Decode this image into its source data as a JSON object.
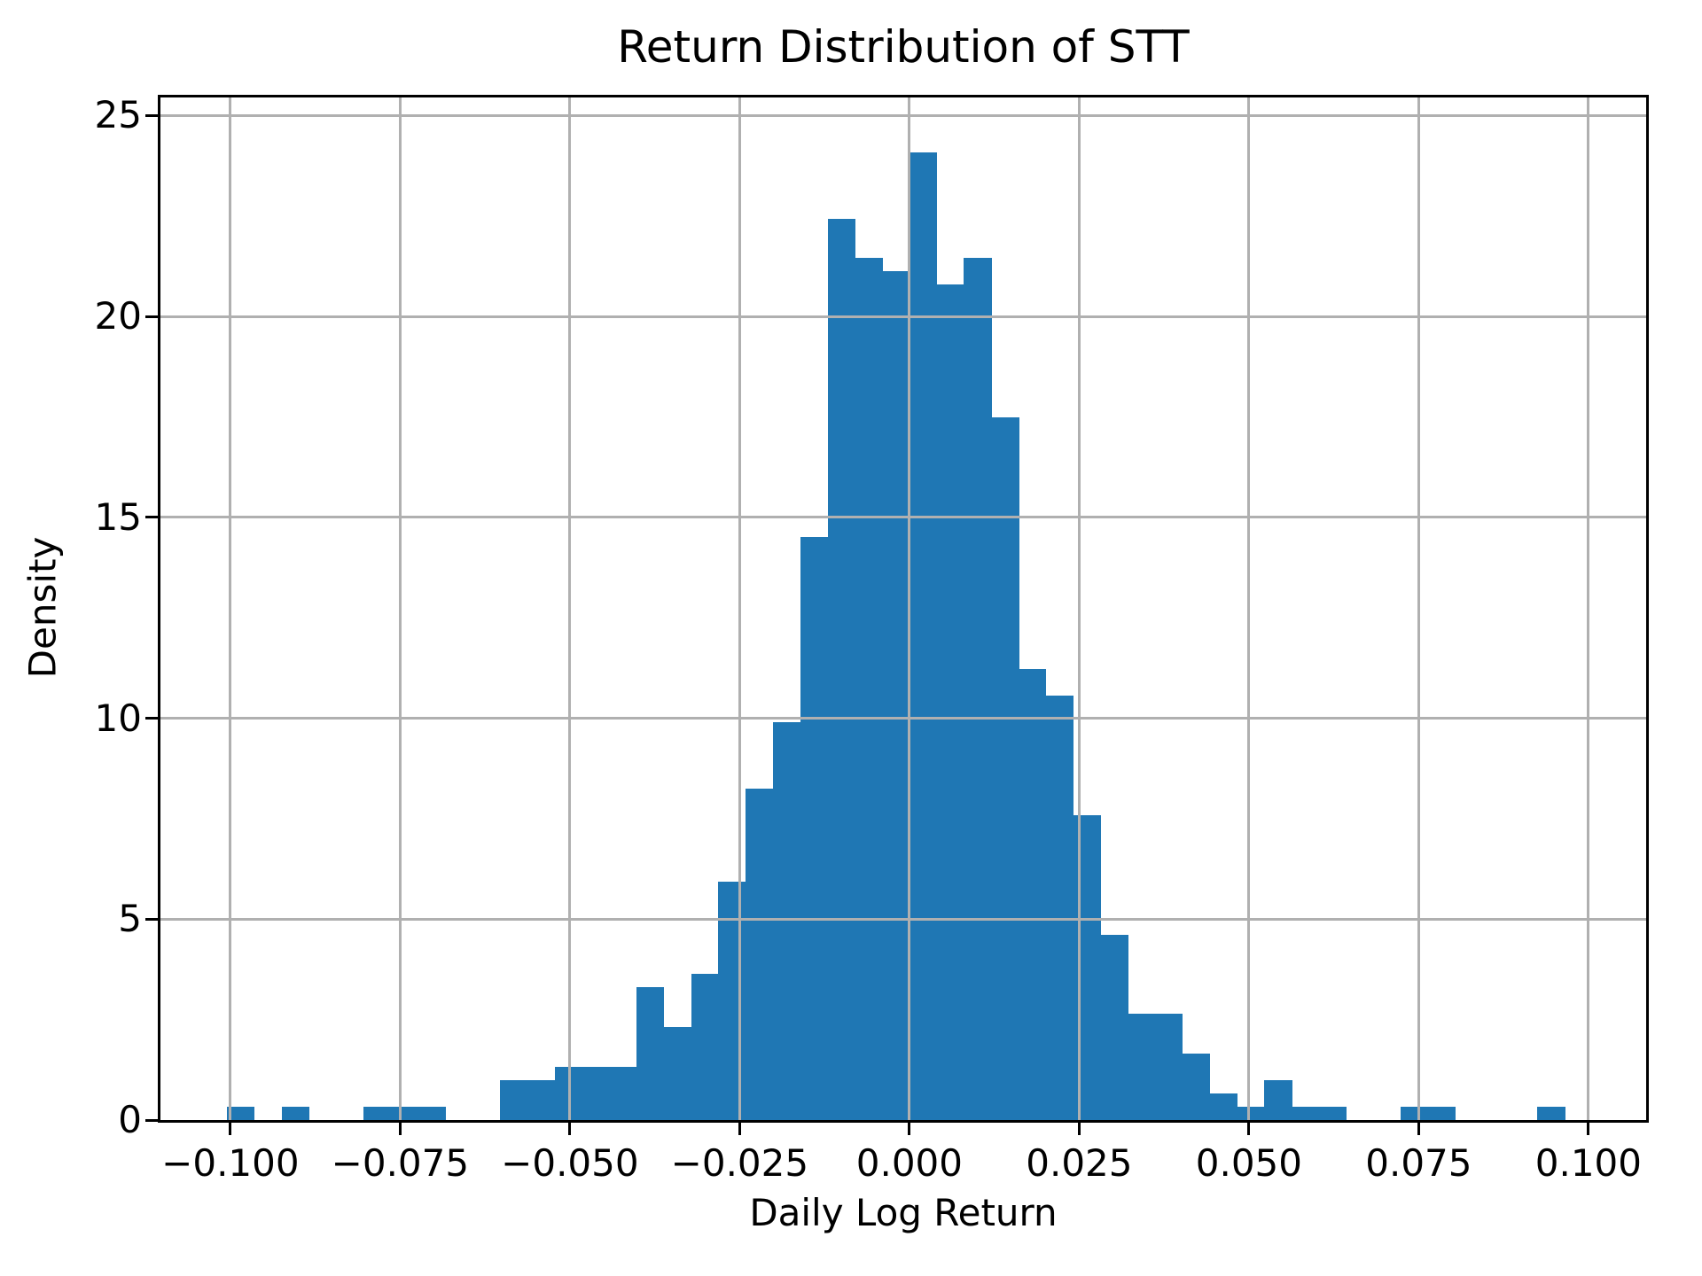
{
  "chart_data": {
    "type": "bar",
    "subtype": "histogram",
    "title": "Return Distribution of STT",
    "xlabel": "Daily Log Return",
    "ylabel": "Density",
    "bar_color": "#1f77b4",
    "grid_color": "#b0b0b0",
    "grid_on": true,
    "grid_above_bars": true,
    "legend": "none",
    "xlim": [
      -0.1103,
      0.1085
    ],
    "ylim": [
      0,
      25.45
    ],
    "bin_start": -0.1005,
    "bin_width": 0.00402,
    "bin_heights": [
      0.33,
      0,
      0.33,
      0,
      0,
      0.33,
      0.33,
      0.33,
      0,
      0,
      0.99,
      0.99,
      1.32,
      1.32,
      1.32,
      3.3,
      2.31,
      3.63,
      5.94,
      8.25,
      9.9,
      14.52,
      22.44,
      21.45,
      21.12,
      24.09,
      20.79,
      21.45,
      17.49,
      11.22,
      10.56,
      7.59,
      4.62,
      2.64,
      2.64,
      1.65,
      0.66,
      0.33,
      0.99,
      0.33,
      0.33,
      0,
      0,
      0.33,
      0.33,
      0,
      0,
      0,
      0.33
    ],
    "x_ticks": [
      {
        "value": -0.1,
        "label": "−0.100"
      },
      {
        "value": -0.075,
        "label": "−0.075"
      },
      {
        "value": -0.05,
        "label": "−0.050"
      },
      {
        "value": -0.025,
        "label": "−0.025"
      },
      {
        "value": 0.0,
        "label": "0.000"
      },
      {
        "value": 0.025,
        "label": "0.025"
      },
      {
        "value": 0.05,
        "label": "0.050"
      },
      {
        "value": 0.075,
        "label": "0.075"
      },
      {
        "value": 0.1,
        "label": "0.100"
      }
    ],
    "y_ticks": [
      {
        "value": 0,
        "label": "0"
      },
      {
        "value": 5,
        "label": "5"
      },
      {
        "value": 10,
        "label": "10"
      },
      {
        "value": 15,
        "label": "15"
      },
      {
        "value": 20,
        "label": "20"
      },
      {
        "value": 25,
        "label": "25"
      }
    ]
  }
}
